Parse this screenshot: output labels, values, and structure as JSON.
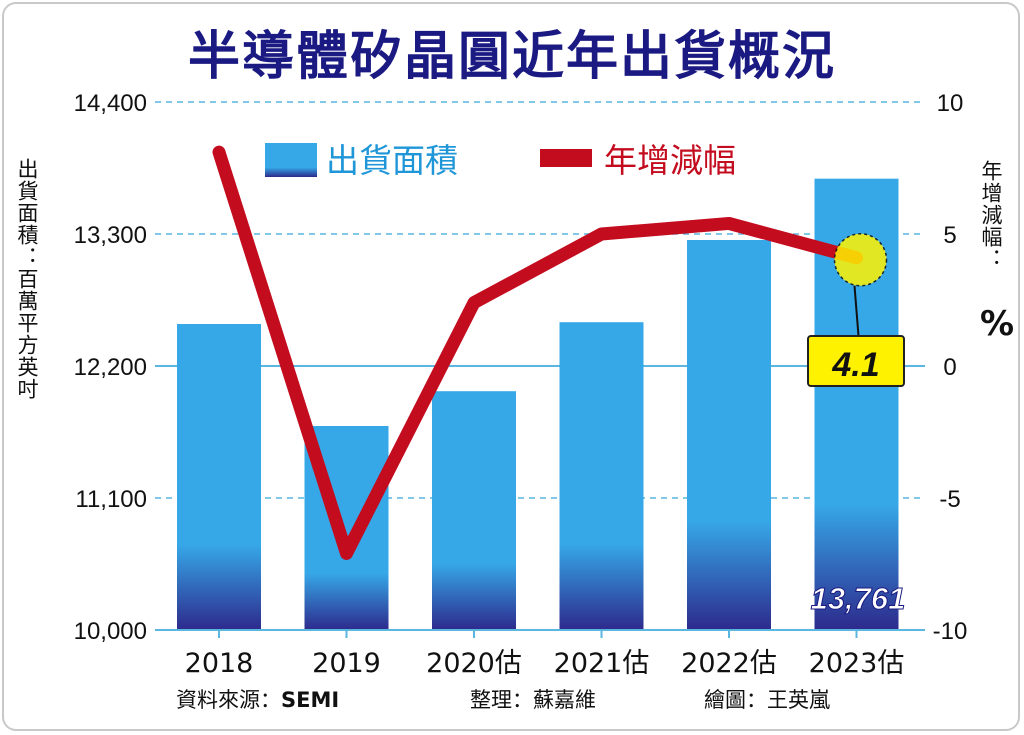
{
  "title": "半導體矽晶圓近年出貨概況",
  "y_left_label": "出貨面積：百萬平方英吋",
  "y_right_label": "年增減幅：",
  "y_right_unit": "%",
  "source_label": "資料來源：",
  "source_value": "SEMI",
  "editor": "整理：蘇嘉維",
  "illustrator": "繪圖：王英嵐",
  "chart_data": {
    "type": "bar",
    "categories": [
      "2018",
      "2019",
      "2020估",
      "2021估",
      "2022估",
      "2023估"
    ],
    "series": [
      {
        "name": "出貨面積",
        "type": "bar",
        "axis": "left",
        "values": [
          12550,
          11700,
          11990,
          12565,
          13250,
          13761
        ]
      },
      {
        "name": "年增減幅",
        "type": "line",
        "axis": "right",
        "values": [
          8.1,
          -7.1,
          2.4,
          5.0,
          5.4,
          4.1
        ]
      }
    ],
    "y_left": {
      "min": 10000,
      "max": 14400,
      "ticks": [
        "10,000",
        "11,100",
        "12,200",
        "13,300",
        "14,400"
      ]
    },
    "y_right": {
      "min": -10,
      "max": 10,
      "ticks": [
        "-10",
        "-5",
        "0",
        "5",
        "10"
      ]
    },
    "annotations": {
      "last_bar_value": "13,761",
      "last_line_value": "4.1"
    },
    "grid": true,
    "legend": "top",
    "colors": {
      "bar_top": "#36a8e8",
      "bar_bottom": "#2d2a8c",
      "line": "#c40c1f",
      "title": "#1b1a82",
      "grid": "#5bb6e0",
      "highlight": "#fff200"
    }
  }
}
